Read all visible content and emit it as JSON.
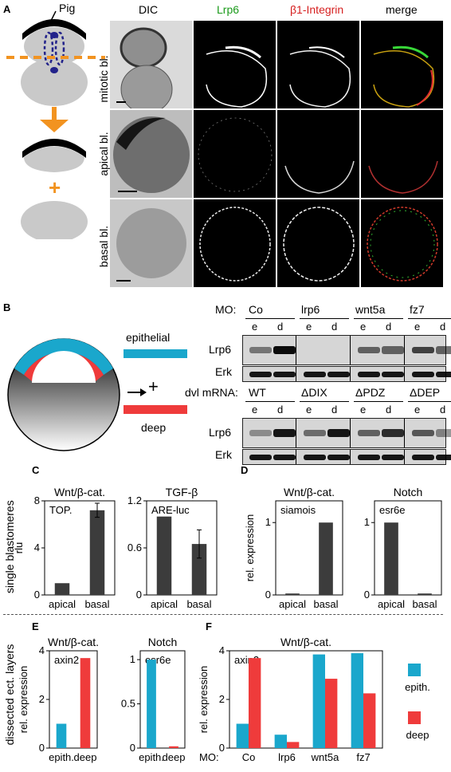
{
  "panelA": {
    "letter": "A",
    "pig_label": "Pig",
    "col_headers": [
      "DIC",
      "Lrp6",
      "β1-Integrin",
      "merge"
    ],
    "col_colors": [
      "#000000",
      "#1a9a1a",
      "#d62020",
      "#000000"
    ],
    "row_labels": [
      "mitotic bl.",
      "apical bl.",
      "basal bl."
    ],
    "plus": "+"
  },
  "panelB": {
    "letter": "B",
    "epithelial": "epithelial",
    "deep": "deep",
    "plus": "+",
    "mo_label": "MO:",
    "mo_groups": [
      "Co",
      "lrp6",
      "wnt5a",
      "fz7"
    ],
    "dvl_label": "dvl mRNA:",
    "dvl_groups": [
      "WT",
      "ΔDIX",
      "ΔPDZ",
      "ΔDEP"
    ],
    "lane_e": "e",
    "lane_d": "d",
    "row_lrp6": "Lrp6",
    "row_erk": "Erk"
  },
  "side_labels": {
    "single": "single blastomeres",
    "dissected": "dissected ect. layers"
  },
  "colors": {
    "epith": "#1aa7cc",
    "deep": "#ef3b3b",
    "bar": "#3c3c3c"
  },
  "chart_data": [
    {
      "id": "C1",
      "panel": "C",
      "type": "bar",
      "title": "Wnt/β-cat.",
      "inner_label": "TOP.",
      "ylabel": "rlu",
      "xlabel": "",
      "categories": [
        "apical",
        "basal"
      ],
      "values": [
        1.0,
        7.2
      ],
      "errors": [
        0,
        0.6
      ],
      "ylim": [
        0,
        8
      ],
      "yticks": [
        "0",
        "4",
        "8"
      ],
      "ytick_values": [
        0,
        4,
        8
      ]
    },
    {
      "id": "C2",
      "panel": "C",
      "type": "bar",
      "title": "TGF-β",
      "inner_label": "ARE-luc",
      "ylabel": "",
      "xlabel": "",
      "categories": [
        "apical",
        "basal"
      ],
      "values": [
        1.0,
        0.65
      ],
      "errors": [
        0,
        0.18
      ],
      "ylim": [
        0,
        1.2
      ],
      "yticks": [
        "0",
        "0.6",
        "1.2"
      ],
      "ytick_values": [
        0,
        0.6,
        1.2
      ]
    },
    {
      "id": "D1",
      "panel": "D",
      "type": "bar",
      "title": "Wnt/β-cat.",
      "inner_label": "siamois",
      "ylabel": "rel. expression",
      "xlabel": "",
      "categories": [
        "apical",
        "basal"
      ],
      "values": [
        0.02,
        1.0
      ],
      "ylim": [
        0,
        1.3
      ],
      "yticks": [
        "0",
        "1"
      ],
      "ytick_values": [
        0,
        1
      ]
    },
    {
      "id": "D2",
      "panel": "D",
      "type": "bar",
      "title": "Notch",
      "inner_label": "esr6e",
      "ylabel": "",
      "xlabel": "",
      "categories": [
        "apical",
        "basal"
      ],
      "values": [
        1.0,
        0.02
      ],
      "ylim": [
        0,
        1.3
      ],
      "yticks": [
        "0",
        "1"
      ],
      "ytick_values": [
        0,
        1
      ]
    },
    {
      "id": "E1",
      "panel": "E",
      "type": "bar",
      "title": "Wnt/β-cat.",
      "inner_label": "axin2",
      "ylabel": "rel. expression",
      "xlabel": "",
      "categories": [
        "epith.",
        "deep"
      ],
      "values": [
        1.0,
        3.7
      ],
      "ylim": [
        0,
        4
      ],
      "yticks": [
        "0",
        "2",
        "4"
      ],
      "ytick_values": [
        0,
        2,
        4
      ]
    },
    {
      "id": "E2",
      "panel": "E",
      "type": "bar",
      "title": "Notch",
      "inner_label": "esr6e",
      "ylabel": "",
      "xlabel": "",
      "categories": [
        "epith.",
        "deep"
      ],
      "values": [
        1.0,
        0.02
      ],
      "ylim": [
        0,
        1.1
      ],
      "yticks": [
        "0",
        "0.5",
        "1"
      ],
      "ytick_values": [
        0,
        0.5,
        1
      ]
    },
    {
      "id": "F",
      "panel": "F",
      "type": "bar",
      "title": "Wnt/β-cat.",
      "inner_label": "axin2",
      "ylabel": "rel. expression",
      "xlabel": "MO:",
      "categories": [
        "Co",
        "lrp6",
        "wnt5a",
        "fz7"
      ],
      "series": [
        {
          "name": "epith.",
          "values": [
            1.0,
            0.55,
            3.85,
            3.9
          ]
        },
        {
          "name": "deep",
          "values": [
            3.7,
            0.25,
            2.85,
            2.25
          ]
        }
      ],
      "ylim": [
        0,
        4
      ],
      "yticks": [
        "0",
        "2",
        "4"
      ],
      "ytick_values": [
        0,
        2,
        4
      ]
    }
  ]
}
